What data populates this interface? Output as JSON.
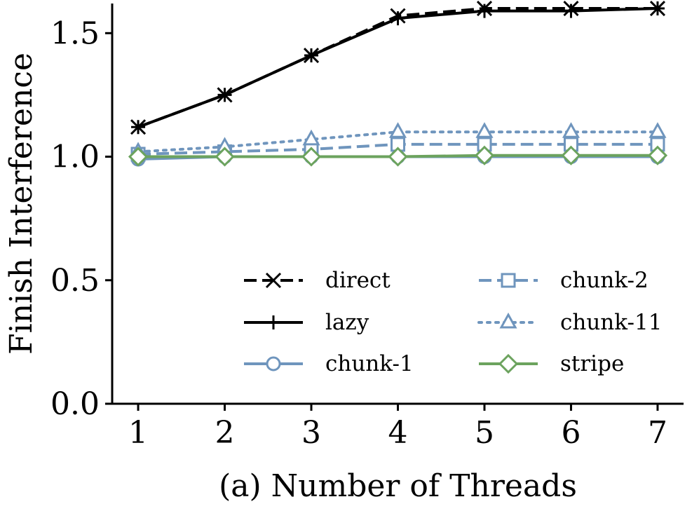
{
  "chart_data": {
    "type": "line",
    "title": "",
    "xlabel": "(a) Number of Threads",
    "ylabel": "Finish Interference",
    "x": [
      1,
      2,
      3,
      4,
      5,
      6,
      7
    ],
    "xticks": [
      "1",
      "2",
      "3",
      "4",
      "5",
      "6",
      "7"
    ],
    "yticks": [
      "0.0",
      "0.5",
      "1.0",
      "1.5"
    ],
    "ytick_values": [
      0.0,
      0.5,
      1.0,
      1.5
    ],
    "ylim": [
      0.0,
      1.62
    ],
    "xlim": [
      0.7,
      7.3
    ],
    "grid": false,
    "legend_placement": "lower-center, two columns",
    "series": [
      {
        "name": "direct",
        "values": [
          1.12,
          1.25,
          1.41,
          1.57,
          1.6,
          1.6,
          1.6
        ],
        "color": "#000000",
        "dash": "dashed",
        "marker": "x"
      },
      {
        "name": "lazy",
        "values": [
          1.12,
          1.25,
          1.41,
          1.56,
          1.59,
          1.59,
          1.6
        ],
        "color": "#000000",
        "dash": "solid",
        "marker": "plus"
      },
      {
        "name": "chunk-1",
        "values": [
          0.99,
          1.0,
          1.0,
          1.0,
          1.0,
          1.0,
          1.0
        ],
        "color": "#6f95bd",
        "dash": "solid",
        "marker": "circle"
      },
      {
        "name": "chunk-2",
        "values": [
          1.01,
          1.02,
          1.03,
          1.05,
          1.05,
          1.05,
          1.05
        ],
        "color": "#6f95bd",
        "dash": "dashed",
        "marker": "square"
      },
      {
        "name": "chunk-11",
        "values": [
          1.02,
          1.04,
          1.07,
          1.1,
          1.1,
          1.1,
          1.1
        ],
        "color": "#6f95bd",
        "dash": "dotted",
        "marker": "triangle"
      },
      {
        "name": "stripe",
        "values": [
          1.0,
          1.0,
          1.0,
          1.0,
          1.005,
          1.005,
          1.005
        ],
        "color": "#6ca35e",
        "dash": "solid",
        "marker": "diamond"
      }
    ]
  }
}
